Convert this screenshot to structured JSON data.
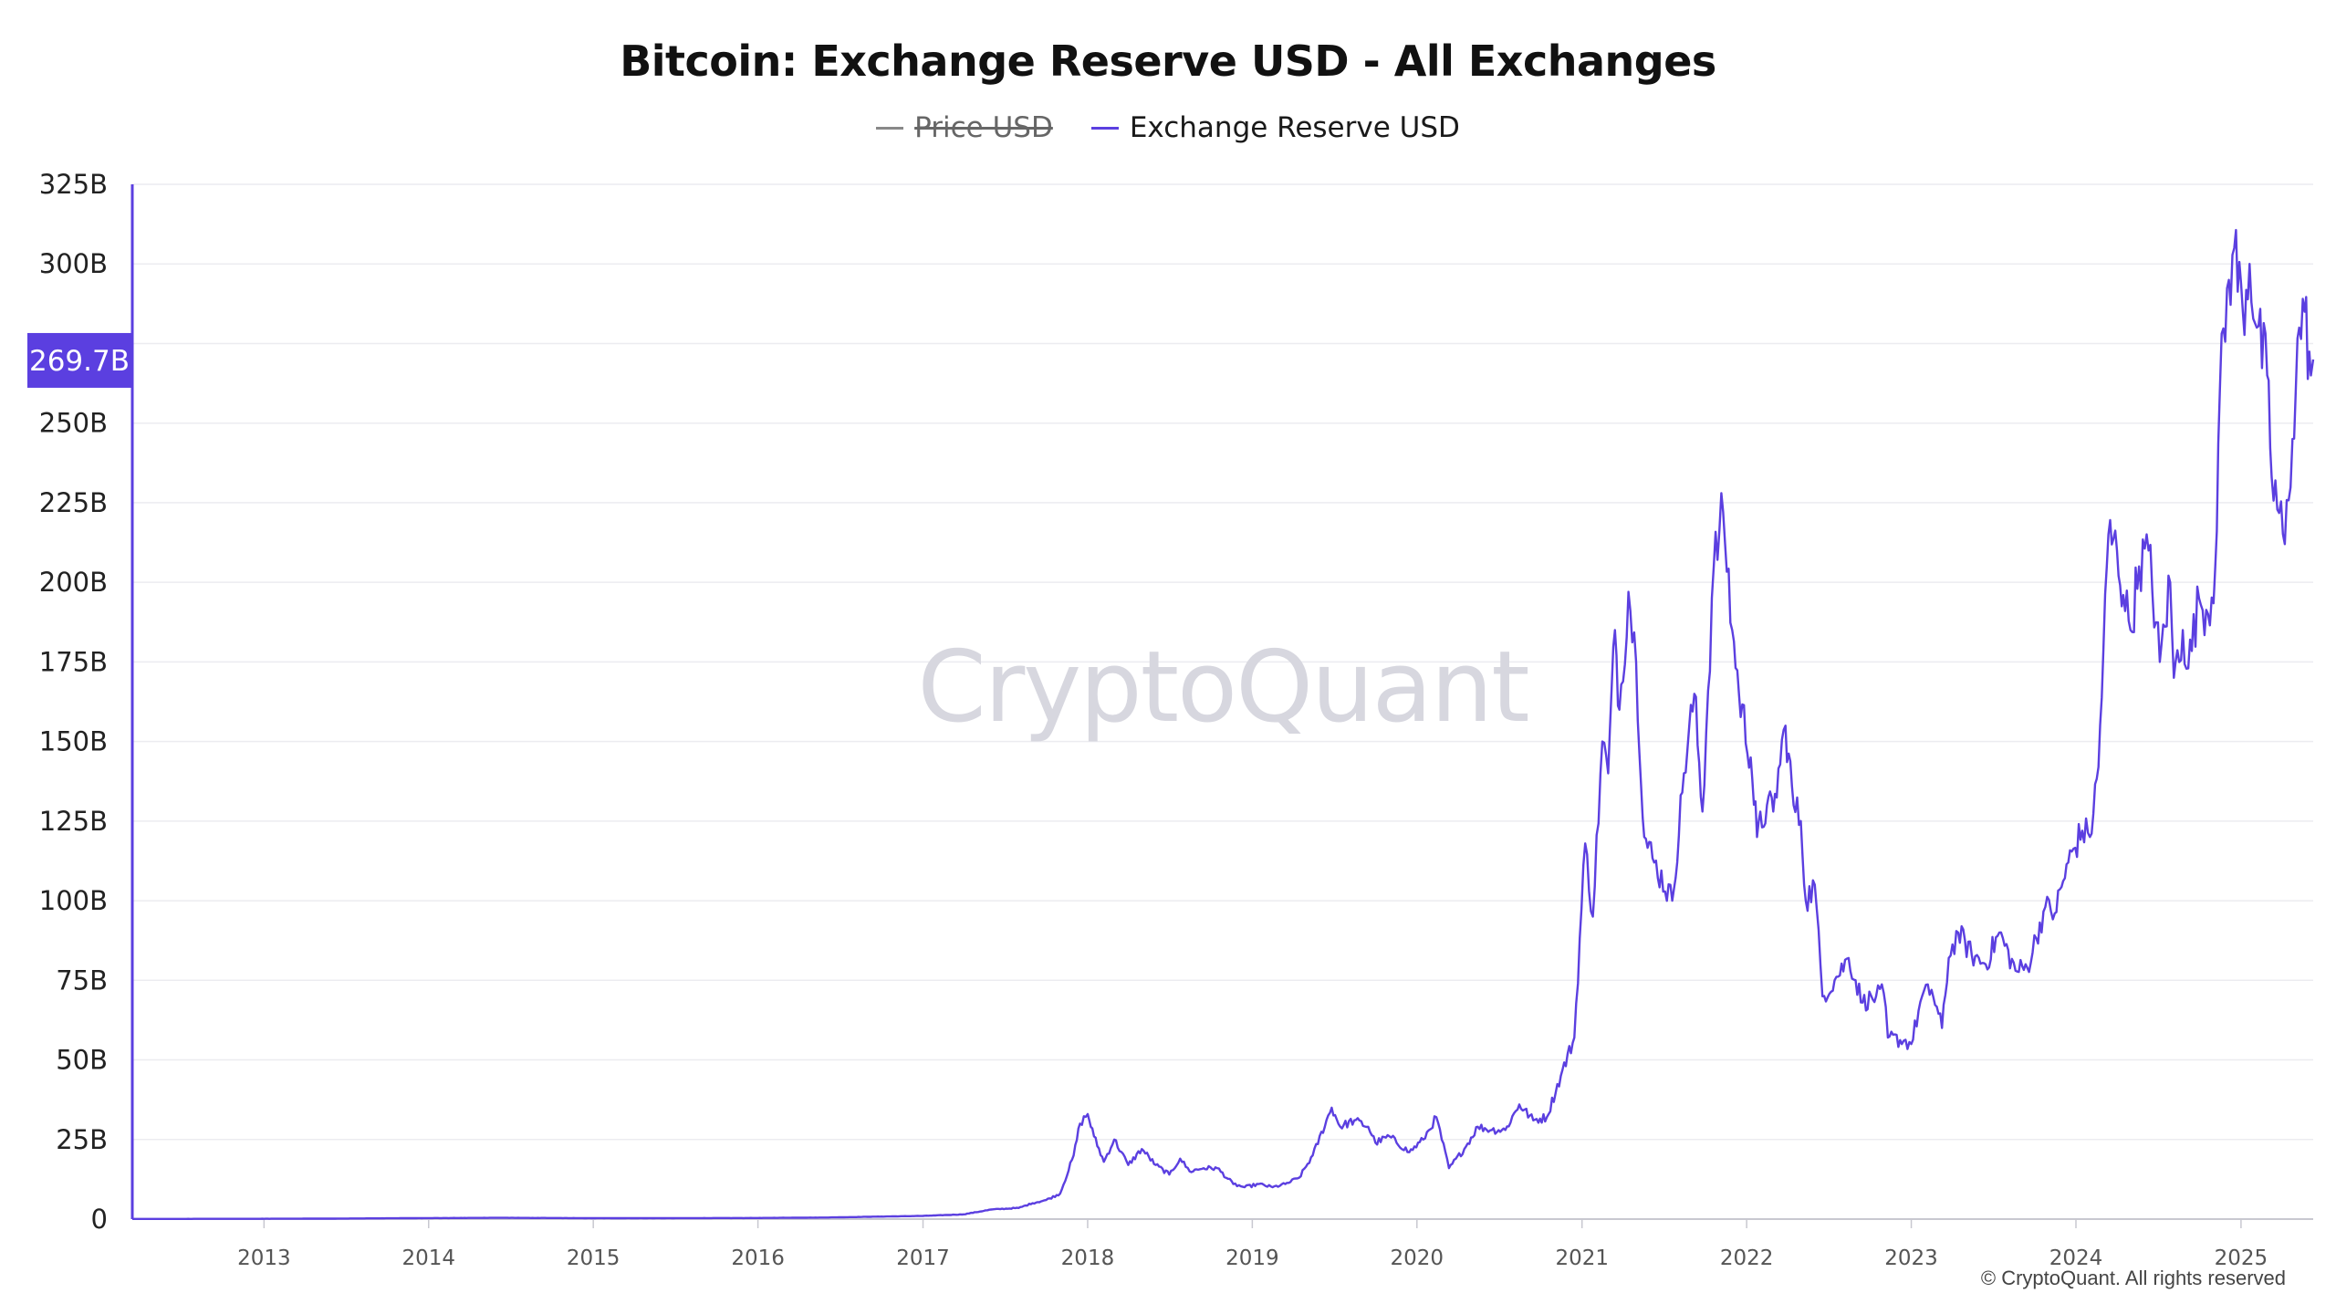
{
  "chart_data": {
    "type": "line",
    "title": "Bitcoin: Exchange Reserve USD - All Exchanges",
    "legend": [
      {
        "name": "Price USD",
        "color": "#888888",
        "visible": false
      },
      {
        "name": "Exchange Reserve USD",
        "color": "#5b3fe0",
        "visible": true
      }
    ],
    "legend_position": "top-center",
    "yticks": [
      "0",
      "25B",
      "50B",
      "75B",
      "100B",
      "125B",
      "150B",
      "175B",
      "200B",
      "225B",
      "250B",
      "275B",
      "300B",
      "325B"
    ],
    "ylim": [
      0,
      325
    ],
    "y_unit": "billion USD",
    "xticks": [
      "2013",
      "2014",
      "2015",
      "2016",
      "2017",
      "2018",
      "2019",
      "2020",
      "2021",
      "2022",
      "2023",
      "2024",
      "2025"
    ],
    "xlim": [
      "2012-03-15",
      "2025-06-10"
    ],
    "current_value_label": "269.7B",
    "grid": true,
    "series": [
      {
        "name": "Exchange Reserve USD",
        "color": "#5b3fe0",
        "points": [
          [
            "2012-03-15",
            0.05
          ],
          [
            "2013-01-01",
            0.1
          ],
          [
            "2013-06-01",
            0.15
          ],
          [
            "2013-12-01",
            0.3
          ],
          [
            "2014-06-01",
            0.4
          ],
          [
            "2015-01-01",
            0.3
          ],
          [
            "2015-06-01",
            0.3
          ],
          [
            "2016-01-01",
            0.35
          ],
          [
            "2016-06-01",
            0.5
          ],
          [
            "2016-10-01",
            0.8
          ],
          [
            "2017-01-01",
            1.0
          ],
          [
            "2017-04-01",
            1.5
          ],
          [
            "2017-06-01",
            3
          ],
          [
            "2017-08-01",
            3.5
          ],
          [
            "2017-09-01",
            5
          ],
          [
            "2017-10-01",
            6
          ],
          [
            "2017-11-01",
            8
          ],
          [
            "2017-12-01",
            20
          ],
          [
            "2017-12-15",
            30
          ],
          [
            "2018-01-01",
            33
          ],
          [
            "2018-01-15",
            26
          ],
          [
            "2018-02-06",
            18
          ],
          [
            "2018-03-01",
            25
          ],
          [
            "2018-04-01",
            17
          ],
          [
            "2018-05-01",
            22
          ],
          [
            "2018-06-01",
            17
          ],
          [
            "2018-07-01",
            14
          ],
          [
            "2018-07-25",
            19
          ],
          [
            "2018-08-15",
            15
          ],
          [
            "2018-09-15",
            16
          ],
          [
            "2018-10-15",
            16
          ],
          [
            "2018-11-20",
            11
          ],
          [
            "2018-12-15",
            10
          ],
          [
            "2019-01-15",
            11
          ],
          [
            "2019-02-15",
            10
          ],
          [
            "2019-03-15",
            11
          ],
          [
            "2019-04-15",
            13
          ],
          [
            "2019-05-15",
            20
          ],
          [
            "2019-06-26",
            35
          ],
          [
            "2019-07-15",
            29
          ],
          [
            "2019-08-15",
            31
          ],
          [
            "2019-09-15",
            29
          ],
          [
            "2019-10-01",
            24
          ],
          [
            "2019-11-01",
            26
          ],
          [
            "2019-12-15",
            21
          ],
          [
            "2020-01-15",
            25
          ],
          [
            "2020-02-13",
            32
          ],
          [
            "2020-03-12",
            16
          ],
          [
            "2020-04-15",
            22
          ],
          [
            "2020-05-15",
            29
          ],
          [
            "2020-06-15",
            28
          ],
          [
            "2020-07-15",
            28
          ],
          [
            "2020-08-15",
            36
          ],
          [
            "2020-09-15",
            31
          ],
          [
            "2020-10-15",
            32
          ],
          [
            "2020-11-15",
            45
          ],
          [
            "2020-12-15",
            57
          ],
          [
            "2021-01-08",
            118
          ],
          [
            "2021-01-25",
            95
          ],
          [
            "2021-02-15",
            150
          ],
          [
            "2021-02-28",
            140
          ],
          [
            "2021-03-15",
            185
          ],
          [
            "2021-03-25",
            160
          ],
          [
            "2021-04-14",
            197
          ],
          [
            "2021-05-01",
            175
          ],
          [
            "2021-05-19",
            120
          ],
          [
            "2021-06-10",
            112
          ],
          [
            "2021-07-20",
            100
          ],
          [
            "2021-08-15",
            140
          ],
          [
            "2021-09-07",
            165
          ],
          [
            "2021-09-25",
            128
          ],
          [
            "2021-10-20",
            205
          ],
          [
            "2021-11-10",
            222
          ],
          [
            "2021-11-30",
            185
          ],
          [
            "2021-12-15",
            165
          ],
          [
            "2022-01-10",
            145
          ],
          [
            "2022-01-24",
            120
          ],
          [
            "2022-02-15",
            130
          ],
          [
            "2022-03-01",
            128
          ],
          [
            "2022-03-28",
            155
          ],
          [
            "2022-04-15",
            130
          ],
          [
            "2022-05-01",
            125
          ],
          [
            "2022-05-12",
            100
          ],
          [
            "2022-06-01",
            105
          ],
          [
            "2022-06-18",
            70
          ],
          [
            "2022-07-15",
            75
          ],
          [
            "2022-08-15",
            82
          ],
          [
            "2022-09-15",
            68
          ],
          [
            "2022-10-15",
            70
          ],
          [
            "2022-11-01",
            71
          ],
          [
            "2022-11-10",
            57
          ],
          [
            "2022-12-15",
            56
          ],
          [
            "2023-01-01",
            55
          ],
          [
            "2023-01-25",
            70
          ],
          [
            "2023-02-15",
            72
          ],
          [
            "2023-03-10",
            60
          ],
          [
            "2023-03-25",
            82
          ],
          [
            "2023-04-15",
            90
          ],
          [
            "2023-05-15",
            83
          ],
          [
            "2023-06-15",
            80
          ],
          [
            "2023-07-15",
            90
          ],
          [
            "2023-08-20",
            78
          ],
          [
            "2023-09-15",
            79
          ],
          [
            "2023-10-25",
            98
          ],
          [
            "2023-11-15",
            96
          ],
          [
            "2023-12-15",
            112
          ],
          [
            "2024-01-15",
            122
          ],
          [
            "2024-02-01",
            120
          ],
          [
            "2024-02-20",
            142
          ],
          [
            "2024-03-13",
            215
          ],
          [
            "2024-04-01",
            210
          ],
          [
            "2024-04-15",
            196
          ],
          [
            "2024-05-01",
            185
          ],
          [
            "2024-05-20",
            205
          ],
          [
            "2024-06-10",
            210
          ],
          [
            "2024-07-05",
            175
          ],
          [
            "2024-07-28",
            200
          ],
          [
            "2024-08-05",
            170
          ],
          [
            "2024-08-25",
            185
          ],
          [
            "2024-09-06",
            173
          ],
          [
            "2024-09-30",
            195
          ],
          [
            "2024-10-20",
            190
          ],
          [
            "2024-11-05",
            205
          ],
          [
            "2024-11-15",
            260
          ],
          [
            "2024-12-05",
            295
          ],
          [
            "2024-12-17",
            305
          ],
          [
            "2025-01-05",
            285
          ],
          [
            "2025-01-20",
            300
          ],
          [
            "2025-02-05",
            280
          ],
          [
            "2025-02-28",
            265
          ],
          [
            "2025-03-10",
            233
          ],
          [
            "2025-04-08",
            212
          ],
          [
            "2025-04-25",
            245
          ],
          [
            "2025-05-10",
            280
          ],
          [
            "2025-05-22",
            285
          ],
          [
            "2025-06-05",
            265
          ],
          [
            "2025-06-10",
            270
          ]
        ]
      }
    ],
    "watermark": "CryptoQuant",
    "footer": "© CryptoQuant. All rights reserved"
  }
}
